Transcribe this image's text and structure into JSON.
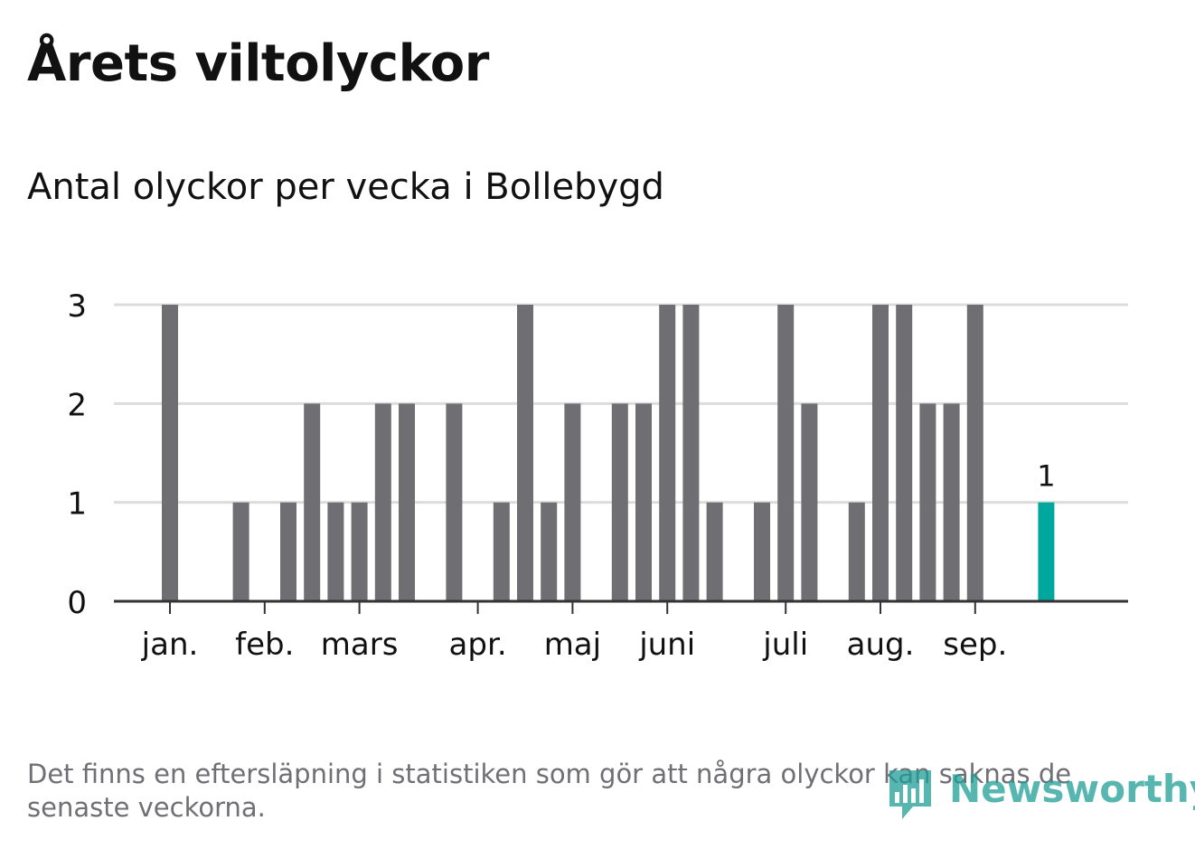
{
  "title": "Årets viltolyckor",
  "subtitle": "Antal olyckor per vecka i Bollebygd",
  "footnote": "Det finns en eftersläpning i statistiken som gör att några olyckor kan saknas de senaste veckorna.",
  "logo_text": "Newsworthy",
  "colors": {
    "bar": "#6f6e73",
    "highlight": "#00a79d",
    "grid": "#dcdcdc",
    "axis": "#333333",
    "text": "#111111"
  },
  "chart_data": {
    "type": "bar",
    "x_weeks": [
      1,
      4,
      6,
      7,
      8,
      9,
      10,
      11,
      13,
      15,
      16,
      17,
      18,
      20,
      21,
      22,
      23,
      24,
      26,
      27,
      28,
      30,
      31,
      32,
      33,
      34,
      35,
      36,
      38
    ],
    "values": [
      3,
      1,
      1,
      2,
      1,
      1,
      2,
      2,
      2,
      1,
      3,
      1,
      2,
      2,
      2,
      3,
      3,
      1,
      1,
      3,
      2,
      1,
      3,
      3,
      2,
      2,
      3,
      0,
      1
    ],
    "highlight_index": 28,
    "highlight_label": "1",
    "ylim": [
      0,
      3
    ],
    "yticks": [
      0,
      1,
      2,
      3
    ],
    "month_ticks": [
      {
        "label": "jan.",
        "week": 1
      },
      {
        "label": "feb.",
        "week": 5
      },
      {
        "label": "mars",
        "week": 9
      },
      {
        "label": "apr.",
        "week": 14
      },
      {
        "label": "maj",
        "week": 18
      },
      {
        "label": "juni",
        "week": 22
      },
      {
        "label": "juli",
        "week": 27
      },
      {
        "label": "aug.",
        "week": 31
      },
      {
        "label": "sep.",
        "week": 35
      }
    ],
    "grid": true,
    "xlabel": "",
    "ylabel": ""
  }
}
